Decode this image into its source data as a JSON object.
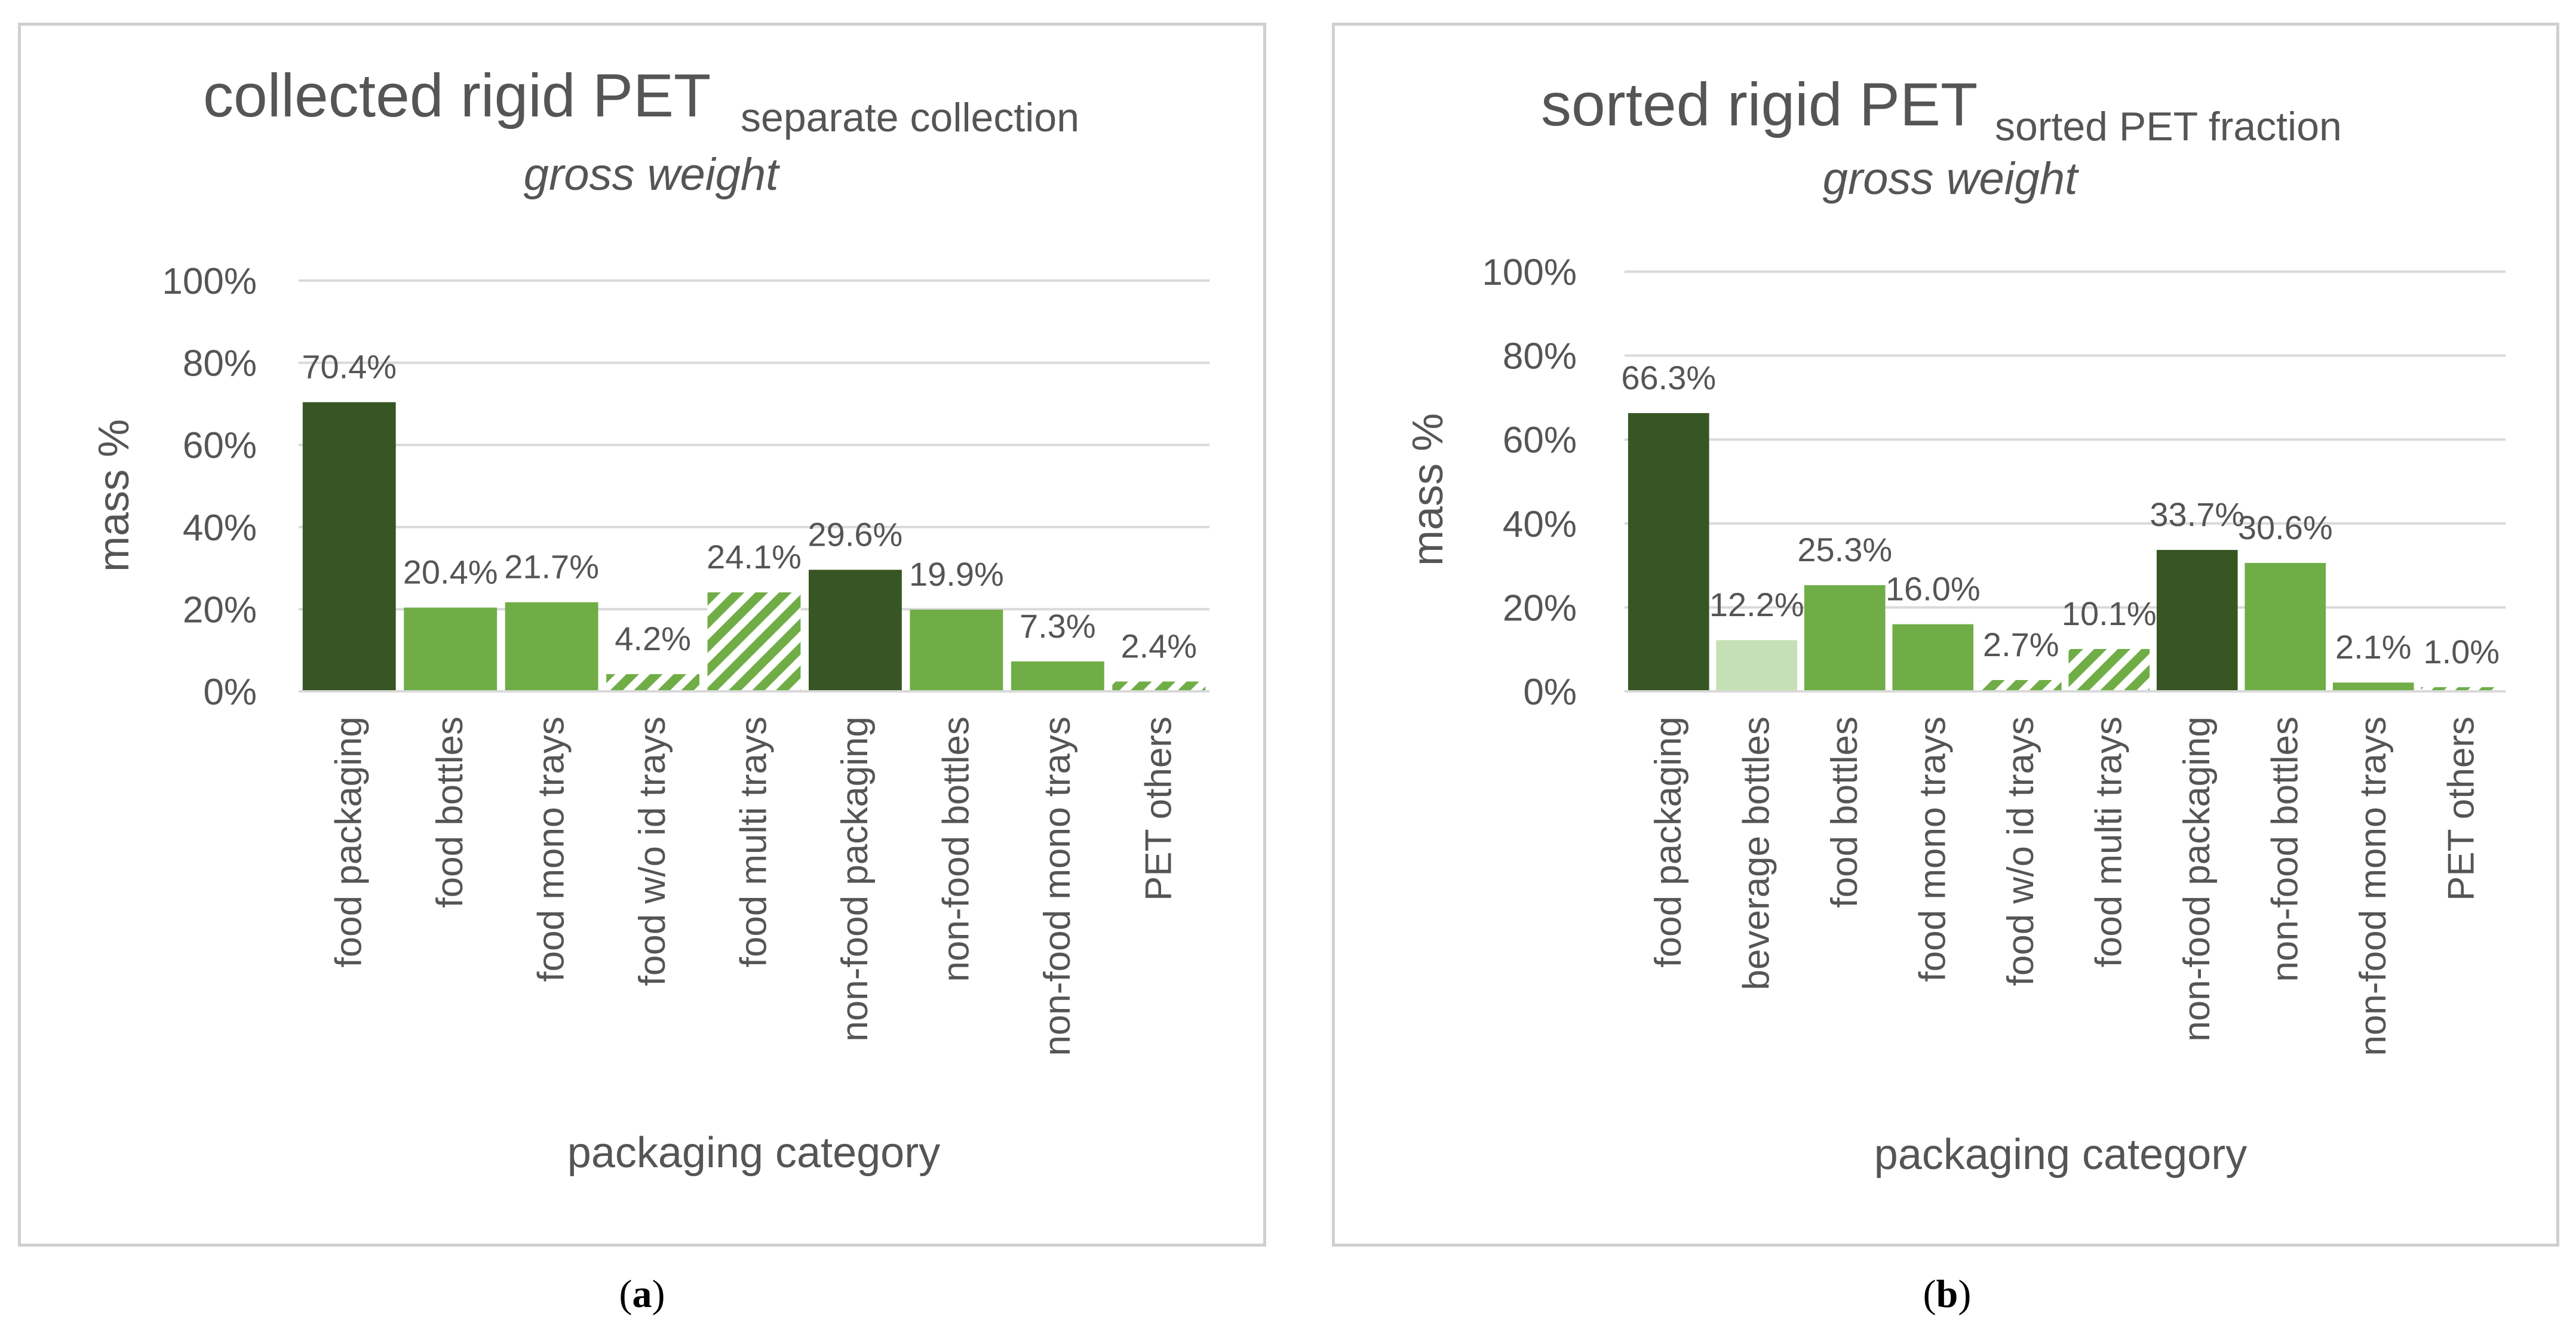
{
  "colors": {
    "dark_green": "#375623",
    "medium_green": "#70ad47",
    "light_green": "#c5e0b4",
    "grid": "#d9d9d9",
    "text": "#595959"
  },
  "panels": [
    {
      "caption_letter": "a",
      "title_main": "collected rigid PET",
      "title_sub": "separate collection",
      "title_italic": "gross weight",
      "chart_data": {
        "type": "bar",
        "xlabel": "packaging category",
        "ylabel": "mass %",
        "ylim": [
          0,
          100
        ],
        "yticks": [
          "0%",
          "20%",
          "40%",
          "60%",
          "80%",
          "100%"
        ],
        "categories": [
          "food packaging",
          "food bottles",
          "food mono trays",
          "food w/o id trays",
          "food multi trays",
          "non-food packaging",
          "non-food bottles",
          "non-food mono trays",
          "PET others"
        ],
        "values": [
          70.4,
          20.4,
          21.7,
          4.2,
          24.1,
          29.6,
          19.9,
          7.3,
          2.4
        ],
        "labels": [
          "70.4%",
          "20.4%",
          "21.7%",
          "4.2%",
          "24.1%",
          "29.6%",
          "19.9%",
          "7.3%",
          "2.4%"
        ],
        "styles": [
          "dark",
          "medium",
          "medium",
          "hatch",
          "hatch",
          "dark",
          "medium",
          "medium",
          "hatch"
        ]
      }
    },
    {
      "caption_letter": "b",
      "title_main": "sorted rigid PET",
      "title_sub": "sorted PET fraction",
      "title_italic": "gross weight",
      "chart_data": {
        "type": "bar",
        "xlabel": "packaging category",
        "ylabel": "mass %",
        "ylim": [
          0,
          100
        ],
        "yticks": [
          "0%",
          "20%",
          "40%",
          "60%",
          "80%",
          "100%"
        ],
        "categories": [
          "food packaging",
          "beverage bottles",
          "food bottles",
          "food mono trays",
          "food w/o id trays",
          "food multi trays",
          "non-food packaging",
          "non-food bottles",
          "non-food mono trays",
          "PET others"
        ],
        "values": [
          66.3,
          12.2,
          25.3,
          16.0,
          2.7,
          10.1,
          33.7,
          30.6,
          2.1,
          1.0
        ],
        "labels": [
          "66.3%",
          "12.2%",
          "25.3%",
          "16.0%",
          "2.7%",
          "10.1%",
          "33.7%",
          "30.6%",
          "2.1%",
          "1.0%"
        ],
        "styles": [
          "dark",
          "light",
          "medium",
          "medium",
          "hatch",
          "hatch",
          "dark",
          "medium",
          "medium",
          "hatch"
        ]
      }
    }
  ]
}
